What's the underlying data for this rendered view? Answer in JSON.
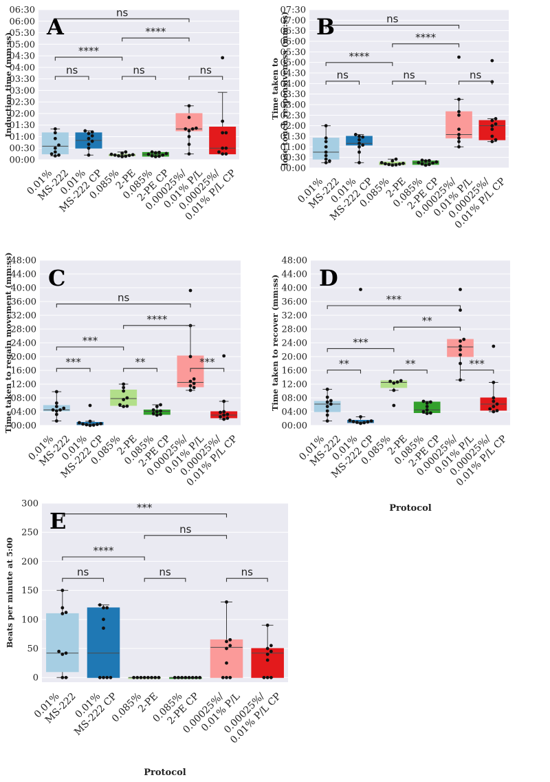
{
  "figure": {
    "palette": {
      "plot_bg": "#eaeaf2",
      "grid": "#ffffff",
      "box_colors": [
        "#a6cee3",
        "#1f78b4",
        "#b2df8a",
        "#33a02c",
        "#fb9a99",
        "#e31a1c"
      ]
    }
  },
  "chart_data": [
    {
      "panel": "A",
      "type": "box",
      "categories": [
        "0.01%\nMS-222",
        "0.01%\nMS-222 CP",
        "0.085%\n2-PE",
        "0.085%\n2-PE CP",
        "0.00025%/\n0.01% P/L",
        "0.00025%/\n0.01% P/L CP"
      ],
      "xlabel": "",
      "ylabel": "Induction time (mm:ss)",
      "y_unit": "seconds",
      "ylim": [
        0,
        390
      ],
      "yticks": [
        0,
        30,
        60,
        90,
        120,
        150,
        180,
        210,
        240,
        270,
        300,
        330,
        360,
        390
      ],
      "ytick_labels": [
        "00:00",
        "00:30",
        "01:00",
        "01:30",
        "02:00",
        "02:30",
        "03:00",
        "03:30",
        "04:00",
        "04:30",
        "05:00",
        "05:30",
        "06:00",
        "06:30"
      ],
      "boxes": [
        {
          "whislo": 10,
          "q1": 15,
          "med": 35,
          "q3": 70,
          "whishi": 80,
          "points": [
            10,
            12,
            15,
            20,
            30,
            38,
            55,
            70,
            80
          ]
        },
        {
          "whislo": 12,
          "q1": 30,
          "med": 50,
          "q3": 70,
          "whishi": 75,
          "points": [
            12,
            30,
            40,
            48,
            55,
            62,
            68,
            72,
            75
          ]
        },
        {
          "whislo": 8,
          "q1": 10,
          "med": 12,
          "q3": 14,
          "whishi": 20,
          "points": [
            8,
            9,
            10,
            11,
            12,
            13,
            14,
            17,
            20
          ]
        },
        {
          "whislo": 8,
          "q1": 9,
          "med": 14,
          "q3": 19,
          "whishi": 20,
          "points": [
            8,
            9,
            10,
            12,
            14,
            16,
            18,
            19,
            20
          ]
        },
        {
          "whislo": 15,
          "q1": 75,
          "med": 80,
          "q3": 120,
          "whishi": 140,
          "points": [
            15,
            40,
            60,
            75,
            80,
            80,
            82,
            110,
            140
          ]
        },
        {
          "whislo": 15,
          "q1": 15,
          "med": 30,
          "q3": 85,
          "whishi": 175,
          "points": [
            15,
            15,
            20,
            30,
            30,
            70,
            70,
            100,
            265
          ]
        }
      ],
      "comparisons": [
        {
          "from": 0,
          "to": 1,
          "level": 0,
          "label": "ns"
        },
        {
          "from": 2,
          "to": 3,
          "level": 0,
          "label": "ns"
        },
        {
          "from": 4,
          "to": 5,
          "level": 0,
          "label": "ns"
        },
        {
          "from": 0,
          "to": 2,
          "level": 1,
          "label": "****"
        },
        {
          "from": 2,
          "to": 4,
          "level": 2,
          "label": "****"
        },
        {
          "from": 0,
          "to": 4,
          "level": 3,
          "label": "ns"
        }
      ]
    },
    {
      "panel": "B",
      "type": "box",
      "categories": [
        "0.01%\nMS-222",
        "0.01%\nMS-222 CP",
        "0.085%\n2-PE",
        "0.085%\n2-PE CP",
        "0.00025%/\n0.01% P/L",
        "0.00025%/\n0.01% P/L CP"
      ],
      "xlabel": "",
      "ylabel": "Time taken to\nlose touch responsiveness (mm:ss)",
      "y_unit": "seconds",
      "ylim": [
        0,
        450
      ],
      "yticks": [
        0,
        30,
        60,
        90,
        120,
        150,
        180,
        210,
        240,
        270,
        300,
        330,
        360,
        390,
        420,
        450
      ],
      "ytick_labels": [
        "00:00",
        "00:30",
        "01:00",
        "01:30",
        "02:00",
        "02:30",
        "03:00",
        "03:30",
        "04:00",
        "04:30",
        "05:00",
        "05:30",
        "06:00",
        "06:30",
        "07:00",
        "07:30"
      ],
      "boxes": [
        {
          "whislo": 15,
          "q1": 25,
          "med": 45,
          "q3": 85,
          "whishi": 120,
          "points": [
            15,
            20,
            25,
            35,
            45,
            60,
            75,
            85,
            120
          ]
        },
        {
          "whislo": 15,
          "q1": 65,
          "med": 70,
          "q3": 90,
          "whishi": 95,
          "points": [
            15,
            45,
            60,
            65,
            70,
            80,
            88,
            90,
            95
          ]
        },
        {
          "whislo": 8,
          "q1": 9,
          "med": 12,
          "q3": 17,
          "whishi": 25,
          "points": [
            8,
            9,
            10,
            11,
            12,
            13,
            15,
            20,
            25
          ]
        },
        {
          "whislo": 8,
          "q1": 10,
          "med": 15,
          "q3": 20,
          "whishi": 22,
          "points": [
            8,
            10,
            12,
            14,
            15,
            17,
            20,
            21,
            22
          ]
        },
        {
          "whislo": 60,
          "q1": 85,
          "med": 95,
          "q3": 160,
          "whishi": 195,
          "points": [
            60,
            75,
            85,
            95,
            110,
            150,
            160,
            195,
            315
          ]
        },
        {
          "whislo": 75,
          "q1": 80,
          "med": 120,
          "q3": 135,
          "whishi": 140,
          "points": [
            75,
            80,
            90,
            110,
            120,
            125,
            135,
            140,
            245,
            305
          ]
        }
      ],
      "comparisons": [
        {
          "from": 0,
          "to": 1,
          "level": 0,
          "label": "ns"
        },
        {
          "from": 2,
          "to": 3,
          "level": 0,
          "label": "ns"
        },
        {
          "from": 4,
          "to": 5,
          "level": 0,
          "label": "ns"
        },
        {
          "from": 0,
          "to": 2,
          "level": 1,
          "label": "****"
        },
        {
          "from": 2,
          "to": 4,
          "level": 2,
          "label": "****"
        },
        {
          "from": 0,
          "to": 4,
          "level": 3,
          "label": "ns"
        }
      ]
    },
    {
      "panel": "C",
      "type": "box",
      "categories": [
        "0.01%\nMS-222",
        "0.01%\nMS-222 CP",
        "0.085%\n2-PE",
        "0.085%\n2-PE CP",
        "0.00025%/\n0.01% P/L",
        "0.00025%/\n0.01% P/L CP"
      ],
      "xlabel": "",
      "ylabel": "Time taken to regain movement (mm:ss)",
      "y_unit": "minutes",
      "ylim": [
        0,
        48
      ],
      "yticks": [
        0,
        4,
        8,
        12,
        16,
        20,
        24,
        28,
        32,
        36,
        40,
        44,
        48
      ],
      "ytick_labels": [
        "00:00",
        "04:00",
        "08:00",
        "12:00",
        "16:00",
        "20:00",
        "24:00",
        "28:00",
        "32:00",
        "36:00",
        "40:00",
        "44:00",
        "48:00"
      ],
      "boxes": [
        {
          "whislo": 1.3,
          "q1": 4.2,
          "med": 4.5,
          "q3": 5.8,
          "whishi": 9.8,
          "points": [
            1.3,
            3.2,
            4.2,
            4.5,
            4.5,
            5.0,
            5.5,
            6.5,
            9.8
          ]
        },
        {
          "whislo": 0,
          "q1": 0.2,
          "med": 0.4,
          "q3": 0.9,
          "whishi": 1.2,
          "points": [
            0,
            0.1,
            0.2,
            0.3,
            0.4,
            0.5,
            0.8,
            1.2,
            5.8
          ]
        },
        {
          "whislo": 5.5,
          "q1": 5.8,
          "med": 7.8,
          "q3": 10.3,
          "whishi": 12,
          "points": [
            5.5,
            5.6,
            6.0,
            7.5,
            8.0,
            10.0,
            11.0,
            12.0
          ]
        },
        {
          "whislo": 3.0,
          "q1": 3.2,
          "med": 4.1,
          "q3": 4.5,
          "whishi": 6.0,
          "points": [
            3.0,
            3.2,
            3.5,
            4.0,
            4.2,
            4.5,
            5.5,
            6.0
          ]
        },
        {
          "whislo": 10.2,
          "q1": 11.2,
          "med": 12.5,
          "q3": 20.2,
          "whishi": 29,
          "points": [
            10.2,
            11.0,
            11.5,
            12.2,
            12.8,
            13.5,
            20.0,
            29.0,
            39.2
          ]
        },
        {
          "whislo": 1.8,
          "q1": 2.2,
          "med": 3.0,
          "q3": 4.0,
          "whishi": 7.0,
          "points": [
            1.8,
            2.1,
            2.5,
            3.0,
            3.2,
            3.8,
            4.0,
            7.0,
            20.2
          ]
        }
      ],
      "comparisons": [
        {
          "from": 0,
          "to": 1,
          "level": 0,
          "label": "***"
        },
        {
          "from": 2,
          "to": 3,
          "level": 0,
          "label": "**"
        },
        {
          "from": 4,
          "to": 5,
          "level": 0,
          "label": "***"
        },
        {
          "from": 0,
          "to": 2,
          "level": 1,
          "label": "***"
        },
        {
          "from": 2,
          "to": 4,
          "level": 2,
          "label": "****"
        },
        {
          "from": 0,
          "to": 4,
          "level": 3,
          "label": "ns"
        }
      ]
    },
    {
      "panel": "D",
      "type": "box",
      "categories": [
        "0.01%\nMS-222",
        "0.01%\nMS-222 CP",
        "0.085%\n2-PE",
        "0.085%\n2-PE CP",
        "0.00025%/\n0.01% P/L",
        "0.00025%/\n0.01% P/L CP"
      ],
      "xlabel": "Protocol",
      "ylabel": "Time taken to recover (mm:ss)",
      "y_unit": "minutes",
      "ylim": [
        0,
        48
      ],
      "yticks": [
        0,
        4,
        8,
        12,
        16,
        20,
        24,
        28,
        32,
        36,
        40,
        44,
        48
      ],
      "ytick_labels": [
        "00:00",
        "04:00",
        "08:00",
        "12:00",
        "16:00",
        "20:00",
        "24:00",
        "28:00",
        "32:00",
        "36:00",
        "40:00",
        "44:00",
        "48:00"
      ],
      "boxes": [
        {
          "whislo": 1.3,
          "q1": 4.0,
          "med": 6.2,
          "q3": 7.0,
          "whishi": 10.5,
          "points": [
            1.3,
            3.0,
            4.2,
            5.5,
            6.2,
            6.8,
            7.2,
            8.2,
            10.5
          ]
        },
        {
          "whislo": 0.6,
          "q1": 0.8,
          "med": 1.0,
          "q3": 1.5,
          "whishi": 2.5,
          "points": [
            0.6,
            0.8,
            0.9,
            1.0,
            1.1,
            1.3,
            1.5,
            2.5,
            39.5
          ]
        },
        {
          "whislo": 10.2,
          "q1": 11.0,
          "med": 12.5,
          "q3": 13.0,
          "whishi": 13.0,
          "points": [
            5.8,
            10.2,
            12.3,
            12.6,
            12.8,
            13.0
          ]
        },
        {
          "whislo": 3.5,
          "q1": 3.7,
          "med": 4.5,
          "q3": 6.8,
          "whishi": 7.0,
          "points": [
            3.5,
            3.6,
            4.0,
            4.5,
            5.5,
            6.5,
            6.8,
            7.0
          ]
        },
        {
          "whislo": 13.2,
          "q1": 20.0,
          "med": 22.8,
          "q3": 25.0,
          "whishi": 25.0,
          "points": [
            13.2,
            18.0,
            20.5,
            22.0,
            23.0,
            24.5,
            25.0,
            33.5,
            39.5
          ]
        },
        {
          "whislo": 4.0,
          "q1": 4.4,
          "med": 6.2,
          "q3": 8.0,
          "whishi": 12.5,
          "points": [
            4.0,
            4.3,
            4.8,
            5.5,
            6.2,
            7.0,
            8.0,
            12.5,
            23.0
          ]
        }
      ],
      "comparisons": [
        {
          "from": 0,
          "to": 1,
          "level": 0,
          "label": "**"
        },
        {
          "from": 2,
          "to": 3,
          "level": 0,
          "label": "**"
        },
        {
          "from": 4,
          "to": 5,
          "level": 0,
          "label": "***"
        },
        {
          "from": 0,
          "to": 2,
          "level": 1,
          "label": "***"
        },
        {
          "from": 2,
          "to": 4,
          "level": 2,
          "label": "**"
        },
        {
          "from": 0,
          "to": 4,
          "level": 3,
          "label": "***"
        }
      ]
    },
    {
      "panel": "E",
      "type": "box",
      "categories": [
        "0.01%\nMS-222",
        "0.01%\nMS-222 CP",
        "0.085%\n2-PE",
        "0.085%\n2-PE CP",
        "0.00025%/\n0.01% P/L",
        "0.00025%/\n0.01% P/L CP"
      ],
      "xlabel": "Protocol",
      "ylabel": "Beats per minute at 5:00",
      "y_unit": "bpm",
      "ylim": [
        -8,
        300
      ],
      "yticks": [
        0,
        50,
        100,
        150,
        200,
        250,
        300
      ],
      "ytick_labels": [
        "0",
        "50",
        "100",
        "150",
        "200",
        "250",
        "300"
      ],
      "boxes": [
        {
          "whislo": 0,
          "q1": 10,
          "med": 42,
          "q3": 110,
          "whishi": 150,
          "points": [
            0,
            0,
            40,
            42,
            45,
            110,
            112,
            120,
            150
          ]
        },
        {
          "whislo": 0,
          "q1": 0,
          "med": 42,
          "q3": 120,
          "whishi": 125,
          "points": [
            0,
            0,
            0,
            0,
            85,
            100,
            120,
            120,
            125
          ]
        },
        {
          "whislo": 0,
          "q1": 0,
          "med": 0,
          "q3": 0,
          "whishi": 0,
          "points": [
            0,
            0,
            0,
            0,
            0,
            0,
            0,
            0
          ]
        },
        {
          "whislo": 0,
          "q1": 0,
          "med": 0,
          "q3": 0,
          "whishi": 0,
          "points": [
            0,
            0,
            0,
            0,
            0,
            0,
            0,
            0
          ]
        },
        {
          "whislo": 0,
          "q1": 0,
          "med": 52,
          "q3": 65,
          "whishi": 130,
          "points": [
            0,
            0,
            0,
            25,
            50,
            55,
            62,
            65,
            130
          ]
        },
        {
          "whislo": 0,
          "q1": 0,
          "med": 42,
          "q3": 50,
          "whishi": 90,
          "points": [
            0,
            0,
            0,
            30,
            40,
            45,
            50,
            55,
            90
          ]
        }
      ],
      "comparisons": [
        {
          "from": 0,
          "to": 1,
          "level": 0,
          "label": "ns"
        },
        {
          "from": 2,
          "to": 3,
          "level": 0,
          "label": "ns"
        },
        {
          "from": 4,
          "to": 5,
          "level": 0,
          "label": "ns"
        },
        {
          "from": 0,
          "to": 2,
          "level": 1,
          "label": "****"
        },
        {
          "from": 2,
          "to": 4,
          "level": 2,
          "label": "ns"
        },
        {
          "from": 0,
          "to": 4,
          "level": 3,
          "label": "***"
        }
      ]
    }
  ]
}
